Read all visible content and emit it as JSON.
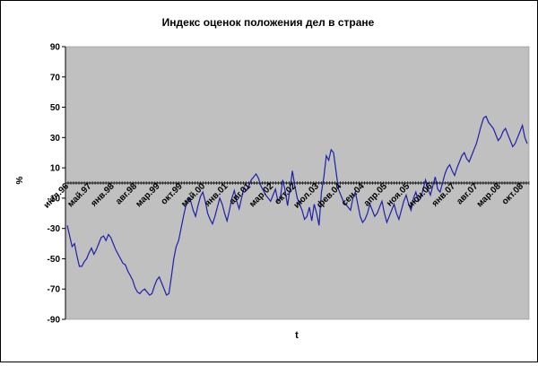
{
  "chart_data": {
    "type": "line",
    "title": "Индекс оценок положения дел в стране",
    "xlabel": "t",
    "ylabel": "%",
    "ylim": [
      -90,
      90
    ],
    "yticks": [
      90,
      70,
      50,
      30,
      10,
      -10,
      -30,
      -50,
      -70,
      -90
    ],
    "y_tick_labels": [
      "90",
      "70",
      "50",
      "30",
      "10",
      "-10",
      "-30",
      "-50",
      "-70",
      "-90"
    ],
    "x_tick_labels": [
      "июл.96",
      "май.97",
      "янв.98",
      "авг.98",
      "мар.99",
      "окт.99",
      "май.00",
      "янв.01",
      "авг.01",
      "мар.02",
      "окт.02",
      "июл.03",
      "фев.04",
      "сен.04",
      "апр.05",
      "ноя.05",
      "июн.06",
      "янв.07",
      "авг.07",
      "мар.08",
      "окт.08"
    ],
    "grid": false,
    "legend": "none",
    "plot_background": "#c0c0c0",
    "line_color": "#1f1fa8",
    "series": [
      {
        "values": [
          -28,
          -35,
          -42,
          -40,
          -48,
          -55,
          -55,
          -52,
          -50,
          -46,
          -43,
          -47,
          -44,
          -40,
          -36,
          -35,
          -38,
          -34,
          -36,
          -40,
          -44,
          -47,
          -50,
          -53,
          -54,
          -58,
          -61,
          -64,
          -69,
          -72,
          -73,
          -71,
          -70,
          -72,
          -74,
          -73,
          -68,
          -64,
          -62,
          -66,
          -70,
          -74,
          -73,
          -62,
          -50,
          -42,
          -38,
          -30,
          -22,
          -15,
          -10,
          -12,
          -18,
          -22,
          -15,
          -9,
          -6,
          -12,
          -20,
          -24,
          -27,
          -22,
          -16,
          -10,
          -14,
          -20,
          -25,
          -18,
          -10,
          -5,
          -12,
          -17,
          -10,
          -3,
          -5,
          -2,
          2,
          4,
          6,
          3,
          -2,
          -5,
          -8,
          -10,
          -12,
          -8,
          -4,
          -12,
          -10,
          2,
          -5,
          -15,
          -4,
          8,
          -2,
          -10,
          -14,
          -18,
          -24,
          -22,
          -16,
          -25,
          -14,
          -20,
          -28,
          -6,
          4,
          18,
          15,
          22,
          20,
          8,
          -4,
          -8,
          -12,
          -14,
          -16,
          -18,
          -10,
          -6,
          -14,
          -22,
          -26,
          -24,
          -20,
          -14,
          -18,
          -22,
          -20,
          -16,
          -12,
          -20,
          -26,
          -22,
          -18,
          -14,
          -20,
          -24,
          -18,
          -12,
          -8,
          -14,
          -18,
          -10,
          -6,
          -12,
          -10,
          -4,
          2,
          -4,
          -8,
          -2,
          4,
          -4,
          -6,
          0,
          6,
          10,
          12,
          8,
          5,
          10,
          14,
          18,
          20,
          16,
          14,
          18,
          22,
          26,
          32,
          38,
          43,
          44,
          40,
          38,
          36,
          32,
          28,
          30,
          34,
          36,
          32,
          28,
          24,
          26,
          30,
          34,
          38,
          30,
          26
        ]
      }
    ]
  }
}
